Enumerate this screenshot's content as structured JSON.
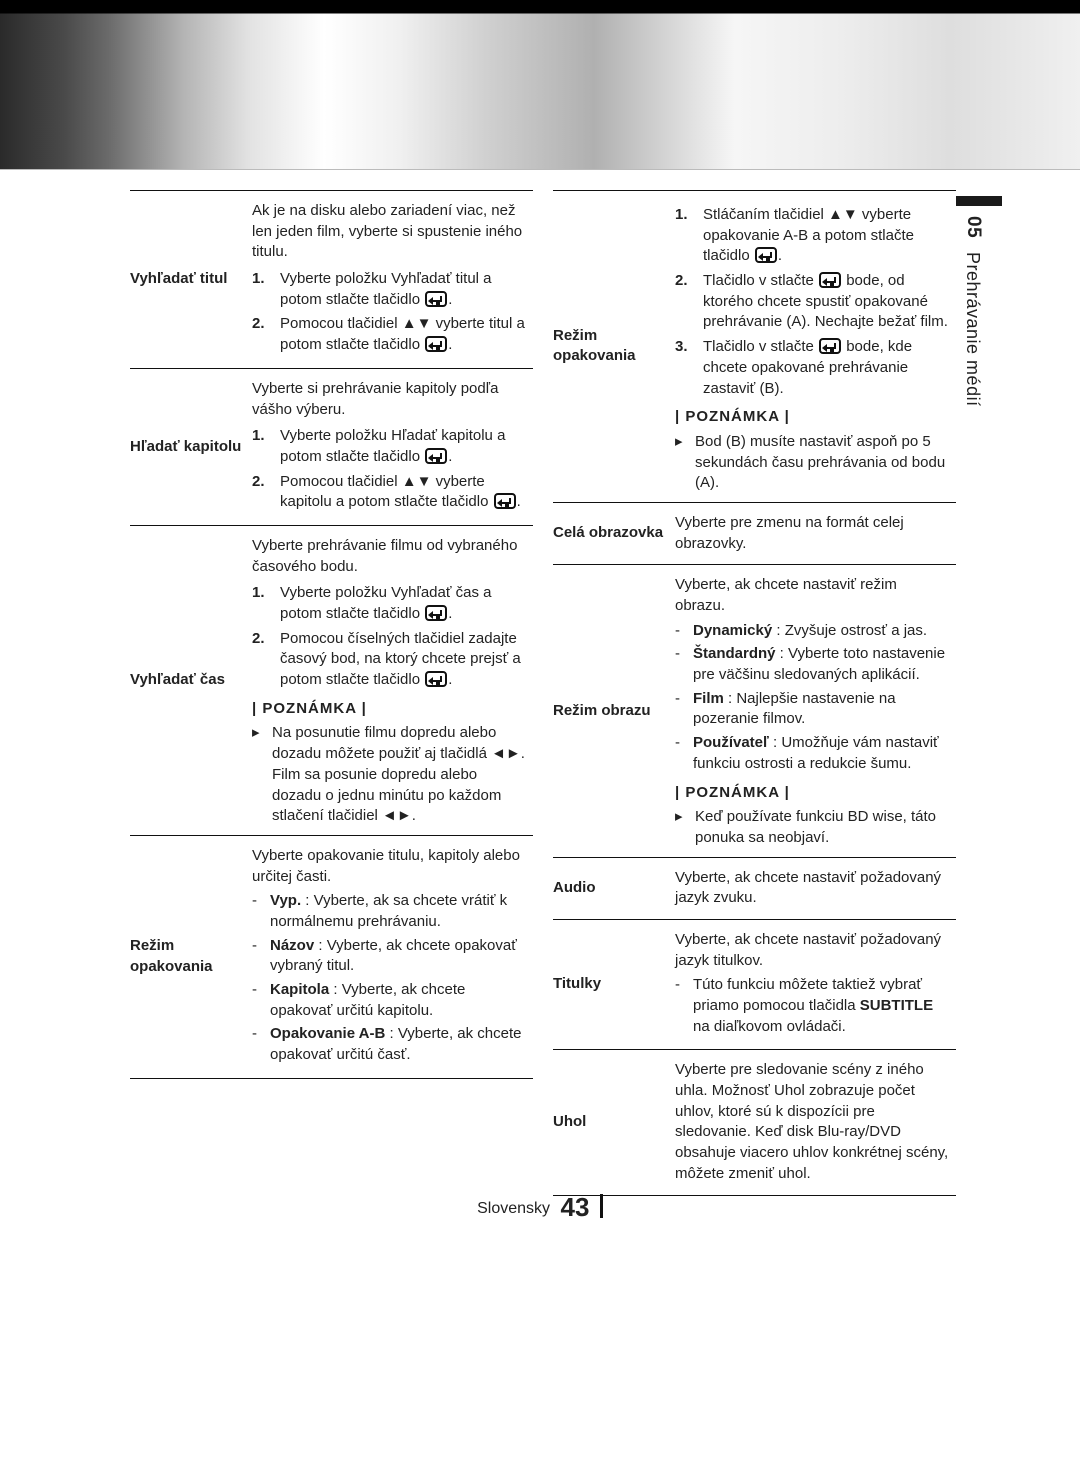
{
  "header": {
    "chapter_num": "05",
    "chapter_title": "Prehrávanie médií"
  },
  "footer": {
    "lang": "Slovensky",
    "page": "43"
  },
  "symbols": {
    "up_down": "▲▼",
    "left_right": "◄►",
    "note_bullet": "▸"
  },
  "notes_heading": "| POZNÁMKA |",
  "left_rows": [
    {
      "label": "Vyhľadať titul",
      "intro": "Ak je na disku alebo zariadení viac, než len jeden film, vyberte si spustenie iného titulu.",
      "steps": [
        {
          "n": "1.",
          "text_a": "Vyberte položku Vyhľadať titul a potom stlačte tlačidlo ",
          "enter": true,
          "text_b": "."
        },
        {
          "n": "2.",
          "text_a": "Pomocou tlačidiel ▲▼ vyberte titul a potom stlačte tlačidlo ",
          "enter": true,
          "text_b": "."
        }
      ]
    },
    {
      "label": "Hľadať kapitolu",
      "intro": "Vyberte si prehrávanie kapitoly podľa vášho výberu.",
      "steps": [
        {
          "n": "1.",
          "text_a": "Vyberte položku Hľadať kapitolu a potom stlačte tlačidlo ",
          "enter": true,
          "text_b": "."
        },
        {
          "n": "2.",
          "text_a": "Pomocou tlačidiel ▲▼ vyberte kapitolu a potom stlačte tlačidlo ",
          "enter": true,
          "text_b": "."
        }
      ]
    },
    {
      "label": "Vyhľadať čas",
      "intro": "Vyberte prehrávanie filmu od vybraného časového bodu.",
      "steps": [
        {
          "n": "1.",
          "text_a": "Vyberte položku Vyhľadať čas a potom stlačte tlačidlo ",
          "enter": true,
          "text_b": "."
        },
        {
          "n": "2.",
          "text_a": "Pomocou číselných tlačidiel zadajte časový bod, na ktorý chcete prejsť a potom stlačte tlačidlo ",
          "enter": true,
          "text_b": "."
        }
      ],
      "note": {
        "items": [
          "Na posunutie filmu dopredu alebo dozadu môžete použiť aj tlačidlá ◄►.",
          "Film sa posunie dopredu alebo dozadu o jednu minútu po každom stlačení tlačidiel ◄►."
        ]
      }
    },
    {
      "label": "Režim opakovania",
      "intro": "Vyberte opakovanie titulu, kapitoly alebo určitej časti.",
      "bullets": [
        {
          "b": "Vyp.",
          "t": " : Vyberte, ak sa chcete vrátiť k normálnemu prehrávaniu."
        },
        {
          "b": "Názov",
          "t": " : Vyberte, ak chcete opakovať vybraný titul."
        },
        {
          "b": "Kapitola",
          "t": " : Vyberte, ak chcete opakovať určitú kapitolu."
        },
        {
          "b": "Opakovanie A-B",
          "t": " : Vyberte, ak chcete opakovať určitú časť."
        }
      ]
    }
  ],
  "right_rows": [
    {
      "label": "Režim opakovania",
      "steps": [
        {
          "n": "1.",
          "text_a": "Stláčaním tlačidiel ▲▼ vyberte opakovanie A-B a potom stlačte tlačidlo ",
          "enter": true,
          "text_b": "."
        },
        {
          "n": "2.",
          "text_a": "Tlačidlo v stlačte ",
          "enter": true,
          "text_b": " bode, od ktorého chcete spustiť opakované prehrávanie (A). Nechajte bežať film."
        },
        {
          "n": "3.",
          "text_a": "Tlačidlo v stlačte ",
          "enter": true,
          "text_b": " bode, kde chcete opakované prehrávanie zastaviť (B)."
        }
      ],
      "note": {
        "items": [
          "Bod (B) musíte nastaviť aspoň po 5 sekundách času prehrávania od bodu (A)."
        ]
      }
    },
    {
      "label": "Celá obrazovka",
      "intro": "Vyberte pre zmenu na formát celej obrazovky."
    },
    {
      "label": "Režim obrazu",
      "intro": "Vyberte, ak chcete nastaviť režim obrazu.",
      "bullets": [
        {
          "b": "Dynamický",
          "t": " : Zvyšuje ostrosť a jas."
        },
        {
          "b": "Štandardný",
          "t": " : Vyberte toto nastavenie pre väčšinu sledovaných aplikácií."
        },
        {
          "b": "Film",
          "t": " : Najlepšie nastavenie na pozeranie filmov."
        },
        {
          "b": "Používateľ",
          "t": " : Umožňuje vám nastaviť funkciu ostrosti a redukcie šumu."
        }
      ],
      "note": {
        "items": [
          "Keď používate funkciu BD wise, táto ponuka sa neobjaví."
        ]
      }
    },
    {
      "label": "Audio",
      "intro": "Vyberte, ak chcete nastaviť požadovaný jazyk zvuku."
    },
    {
      "label": "Titulky",
      "intro": "Vyberte, ak chcete nastaviť požadovaný jazyk titulkov.",
      "bullets": [
        {
          "b": "",
          "t": "Túto funkciu môžete taktiež vybrať priamo pomocou tlačidla SUBTITLE na diaľkovom ovládači.",
          "subtle_bold": "SUBTITLE"
        }
      ]
    },
    {
      "label": "Uhol",
      "intro": "Vyberte pre sledovanie scény z iného uhla. Možnosť Uhol zobrazuje počet uhlov, ktoré sú k dispozícii pre sledovanie. Keď disk Blu-ray/DVD obsahuje viacero uhlov konkrétnej scény, môžete zmeniť uhol."
    }
  ]
}
